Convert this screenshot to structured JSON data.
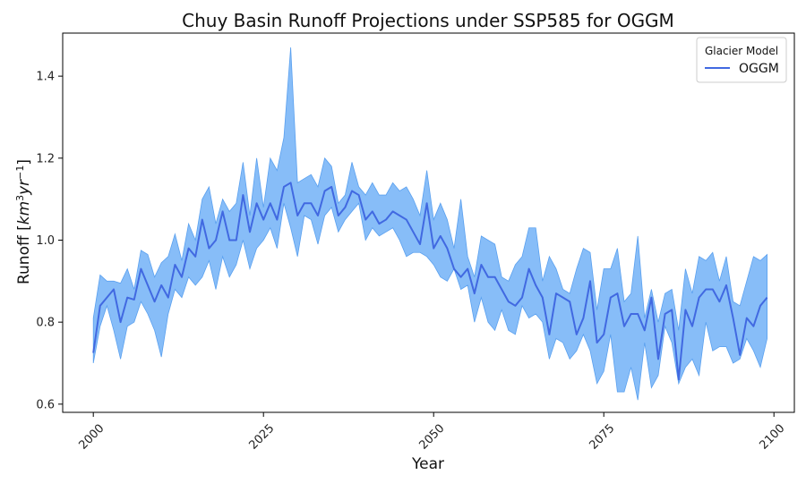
{
  "chart_data": {
    "type": "line",
    "title": "Chuy Basin Runoff Projections under SSP585 for OGGM",
    "xlabel": "Year",
    "ylabel": "Runoff [km³yr⁻¹]",
    "ylabel_parts": {
      "base": "Runoff [",
      "unit_a": "km",
      "sup_a": "3",
      "unit_b": "yr",
      "sup_b": "−1",
      "close": "]"
    },
    "xlim": [
      1995.5,
      2103
    ],
    "ylim": [
      0.58,
      1.505
    ],
    "x_ticks": [
      2000,
      2025,
      2050,
      2075,
      2100
    ],
    "x_tick_labels": [
      "2000",
      "2025",
      "2050",
      "2075",
      "2100"
    ],
    "y_ticks": [
      0.6,
      0.8,
      1.0,
      1.2,
      1.4
    ],
    "y_tick_labels": [
      "0.6",
      "0.8",
      "1.0",
      "1.2",
      "1.4"
    ],
    "grid": false,
    "legend": {
      "title": "Glacier Model",
      "placement": "top-right",
      "entries": [
        "OGGM"
      ]
    },
    "colors": {
      "line": "#4169e1",
      "band": "#87bdf8",
      "band_edge": "#5aa0ef"
    },
    "x": [
      2000,
      2001,
      2002,
      2003,
      2004,
      2005,
      2006,
      2007,
      2008,
      2009,
      2010,
      2011,
      2012,
      2013,
      2014,
      2015,
      2016,
      2017,
      2018,
      2019,
      2020,
      2021,
      2022,
      2023,
      2024,
      2025,
      2026,
      2027,
      2028,
      2029,
      2030,
      2031,
      2032,
      2033,
      2034,
      2035,
      2036,
      2037,
      2038,
      2039,
      2040,
      2041,
      2042,
      2043,
      2044,
      2045,
      2046,
      2047,
      2048,
      2049,
      2050,
      2051,
      2052,
      2053,
      2054,
      2055,
      2056,
      2057,
      2058,
      2059,
      2060,
      2061,
      2062,
      2063,
      2064,
      2065,
      2066,
      2067,
      2068,
      2069,
      2070,
      2071,
      2072,
      2073,
      2074,
      2075,
      2076,
      2077,
      2078,
      2079,
      2080,
      2081,
      2082,
      2083,
      2084,
      2085,
      2086,
      2087,
      2088,
      2089,
      2090,
      2091,
      2092,
      2093,
      2094,
      2095,
      2096,
      2097,
      2098,
      2099
    ],
    "series": [
      {
        "name": "OGGM",
        "mean": [
          0.725,
          0.84,
          0.86,
          0.88,
          0.8,
          0.86,
          0.855,
          0.93,
          0.89,
          0.85,
          0.89,
          0.86,
          0.94,
          0.91,
          0.98,
          0.96,
          1.05,
          0.98,
          1.0,
          1.07,
          1.0,
          1.0,
          1.11,
          1.02,
          1.09,
          1.05,
          1.09,
          1.05,
          1.13,
          1.14,
          1.06,
          1.09,
          1.09,
          1.06,
          1.12,
          1.13,
          1.06,
          1.08,
          1.12,
          1.11,
          1.05,
          1.07,
          1.04,
          1.05,
          1.07,
          1.06,
          1.05,
          1.02,
          0.99,
          1.09,
          0.98,
          1.01,
          0.98,
          0.93,
          0.91,
          0.93,
          0.87,
          0.94,
          0.91,
          0.91,
          0.88,
          0.85,
          0.84,
          0.86,
          0.93,
          0.89,
          0.86,
          0.77,
          0.87,
          0.86,
          0.85,
          0.77,
          0.81,
          0.9,
          0.75,
          0.77,
          0.86,
          0.87,
          0.79,
          0.82,
          0.82,
          0.78,
          0.86,
          0.71,
          0.82,
          0.83,
          0.66,
          0.83,
          0.79,
          0.86,
          0.88,
          0.88,
          0.85,
          0.89,
          0.81,
          0.72,
          0.81,
          0.79,
          0.84,
          0.86
        ],
        "upper": [
          0.81,
          0.915,
          0.9,
          0.9,
          0.895,
          0.93,
          0.88,
          0.975,
          0.965,
          0.91,
          0.945,
          0.96,
          1.015,
          0.95,
          1.04,
          1.0,
          1.1,
          1.13,
          1.04,
          1.1,
          1.07,
          1.09,
          1.19,
          1.06,
          1.2,
          1.08,
          1.2,
          1.17,
          1.25,
          1.47,
          1.14,
          1.15,
          1.16,
          1.13,
          1.2,
          1.18,
          1.09,
          1.11,
          1.19,
          1.13,
          1.11,
          1.14,
          1.11,
          1.11,
          1.14,
          1.12,
          1.13,
          1.1,
          1.06,
          1.17,
          1.05,
          1.09,
          1.05,
          0.98,
          1.1,
          0.96,
          0.91,
          1.01,
          1.0,
          0.99,
          0.91,
          0.9,
          0.94,
          0.96,
          1.03,
          1.03,
          0.9,
          0.96,
          0.93,
          0.88,
          0.87,
          0.93,
          0.98,
          0.97,
          0.83,
          0.93,
          0.93,
          0.98,
          0.85,
          0.87,
          1.01,
          0.81,
          0.88,
          0.8,
          0.87,
          0.88,
          0.78,
          0.93,
          0.87,
          0.96,
          0.95,
          0.97,
          0.9,
          0.96,
          0.85,
          0.84,
          0.9,
          0.96,
          0.95,
          0.965
        ],
        "lower": [
          0.7,
          0.79,
          0.84,
          0.78,
          0.71,
          0.79,
          0.8,
          0.85,
          0.82,
          0.78,
          0.715,
          0.82,
          0.88,
          0.86,
          0.91,
          0.89,
          0.91,
          0.95,
          0.88,
          0.96,
          0.91,
          0.94,
          1.0,
          0.93,
          0.98,
          1.0,
          1.03,
          0.98,
          1.09,
          1.03,
          0.96,
          1.06,
          1.05,
          0.99,
          1.06,
          1.08,
          1.02,
          1.05,
          1.07,
          1.09,
          1.0,
          1.03,
          1.01,
          1.02,
          1.03,
          1.0,
          0.96,
          0.97,
          0.97,
          0.96,
          0.94,
          0.91,
          0.9,
          0.93,
          0.88,
          0.89,
          0.8,
          0.86,
          0.8,
          0.78,
          0.83,
          0.78,
          0.77,
          0.84,
          0.81,
          0.82,
          0.8,
          0.71,
          0.76,
          0.75,
          0.71,
          0.73,
          0.77,
          0.73,
          0.65,
          0.68,
          0.77,
          0.63,
          0.63,
          0.69,
          0.61,
          0.75,
          0.64,
          0.67,
          0.79,
          0.75,
          0.65,
          0.69,
          0.71,
          0.67,
          0.8,
          0.73,
          0.74,
          0.74,
          0.7,
          0.71,
          0.76,
          0.73,
          0.69,
          0.76
        ]
      }
    ]
  }
}
